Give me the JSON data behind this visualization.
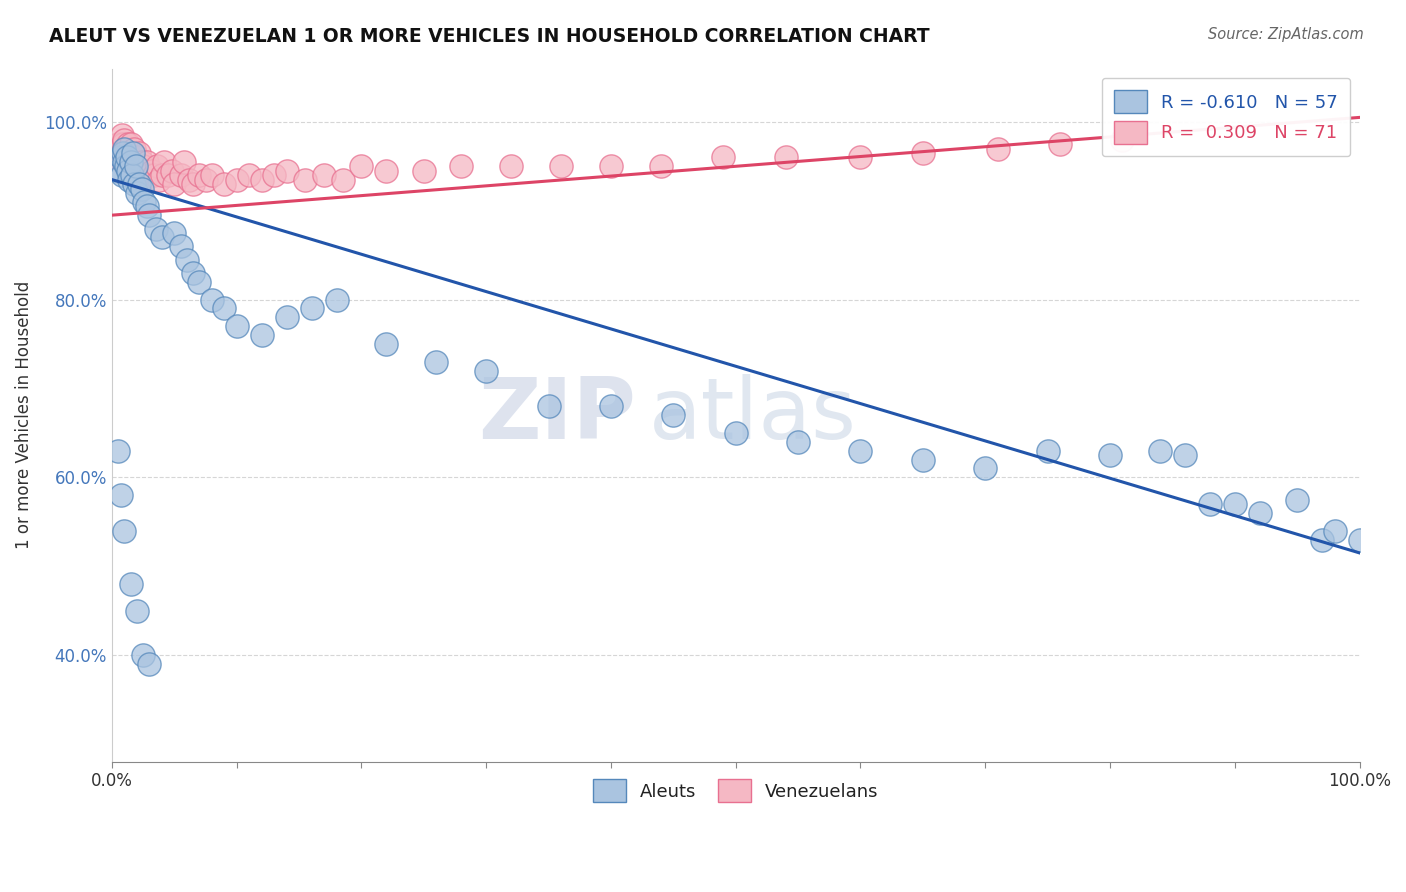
{
  "title": "ALEUT VS VENEZUELAN 1 OR MORE VEHICLES IN HOUSEHOLD CORRELATION CHART",
  "source_text": "Source: ZipAtlas.com",
  "ylabel": "1 or more Vehicles in Household",
  "xlim": [
    0.0,
    1.0
  ],
  "ylim": [
    0.28,
    1.06
  ],
  "aleut_color": "#aac4e0",
  "venezulan_color": "#f5b8c4",
  "aleut_R": -0.61,
  "aleut_N": 57,
  "venezulan_R": 0.309,
  "venezulan_N": 71,
  "aleut_line_color": "#2255aa",
  "venezulan_line_color": "#dd4466",
  "watermark_zip": "ZIP",
  "watermark_atlas": "atlas",
  "legend_label_aleuts": "Aleuts",
  "legend_label_venezuelans": "Venezuelans",
  "aleut_line_x0": 0.0,
  "aleut_line_y0": 0.935,
  "aleut_line_x1": 1.0,
  "aleut_line_y1": 0.515,
  "venezulan_line_x0": 0.0,
  "venezulan_line_y0": 0.895,
  "venezulan_line_x1": 1.0,
  "venezulan_line_y1": 1.005,
  "aleut_points_x": [
    0.005,
    0.007,
    0.008,
    0.009,
    0.01,
    0.01,
    0.011,
    0.012,
    0.013,
    0.014,
    0.015,
    0.016,
    0.017,
    0.018,
    0.019,
    0.02,
    0.022,
    0.024,
    0.026,
    0.028,
    0.03,
    0.035,
    0.04,
    0.05,
    0.055,
    0.06,
    0.065,
    0.07,
    0.08,
    0.09,
    0.1,
    0.12,
    0.14,
    0.16,
    0.18,
    0.22,
    0.26,
    0.3,
    0.35,
    0.4,
    0.45,
    0.5,
    0.55,
    0.6,
    0.65,
    0.7,
    0.75,
    0.8,
    0.84,
    0.86,
    0.88,
    0.9,
    0.92,
    0.95,
    0.97,
    0.98,
    1.0
  ],
  "aleut_points_y": [
    0.945,
    0.96,
    0.94,
    0.965,
    0.955,
    0.97,
    0.95,
    0.96,
    0.945,
    0.935,
    0.955,
    0.94,
    0.965,
    0.93,
    0.95,
    0.92,
    0.93,
    0.925,
    0.91,
    0.905,
    0.895,
    0.88,
    0.87,
    0.875,
    0.86,
    0.845,
    0.83,
    0.82,
    0.8,
    0.79,
    0.77,
    0.76,
    0.78,
    0.79,
    0.8,
    0.75,
    0.73,
    0.72,
    0.68,
    0.68,
    0.67,
    0.65,
    0.64,
    0.63,
    0.62,
    0.61,
    0.63,
    0.625,
    0.63,
    0.625,
    0.57,
    0.57,
    0.56,
    0.575,
    0.53,
    0.54,
    0.53
  ],
  "venezulan_points_x": [
    0.004,
    0.005,
    0.006,
    0.007,
    0.008,
    0.008,
    0.009,
    0.009,
    0.01,
    0.01,
    0.011,
    0.011,
    0.012,
    0.013,
    0.013,
    0.014,
    0.015,
    0.015,
    0.016,
    0.017,
    0.018,
    0.019,
    0.02,
    0.021,
    0.022,
    0.023,
    0.024,
    0.025,
    0.027,
    0.028,
    0.03,
    0.032,
    0.034,
    0.036,
    0.038,
    0.04,
    0.042,
    0.045,
    0.048,
    0.05,
    0.055,
    0.058,
    0.062,
    0.065,
    0.07,
    0.075,
    0.08,
    0.09,
    0.1,
    0.11,
    0.12,
    0.13,
    0.14,
    0.155,
    0.17,
    0.185,
    0.2,
    0.22,
    0.25,
    0.28,
    0.32,
    0.36,
    0.4,
    0.44,
    0.49,
    0.54,
    0.6,
    0.65,
    0.71,
    0.76,
    0.81
  ],
  "venezulan_points_y": [
    0.96,
    0.975,
    0.958,
    0.97,
    0.965,
    0.985,
    0.955,
    0.975,
    0.96,
    0.98,
    0.95,
    0.97,
    0.965,
    0.958,
    0.975,
    0.96,
    0.955,
    0.975,
    0.96,
    0.95,
    0.97,
    0.955,
    0.96,
    0.95,
    0.965,
    0.945,
    0.955,
    0.95,
    0.945,
    0.955,
    0.94,
    0.945,
    0.94,
    0.95,
    0.935,
    0.94,
    0.955,
    0.94,
    0.945,
    0.93,
    0.94,
    0.955,
    0.935,
    0.93,
    0.94,
    0.935,
    0.94,
    0.93,
    0.935,
    0.94,
    0.935,
    0.94,
    0.945,
    0.935,
    0.94,
    0.935,
    0.95,
    0.945,
    0.945,
    0.95,
    0.95,
    0.95,
    0.95,
    0.95,
    0.96,
    0.96,
    0.96,
    0.965,
    0.97,
    0.975,
    0.98
  ],
  "aleut_extra_low_x": [
    0.005,
    0.007,
    0.01,
    0.015,
    0.02,
    0.025,
    0.03
  ],
  "aleut_extra_low_y": [
    0.63,
    0.58,
    0.54,
    0.48,
    0.45,
    0.4,
    0.39
  ]
}
